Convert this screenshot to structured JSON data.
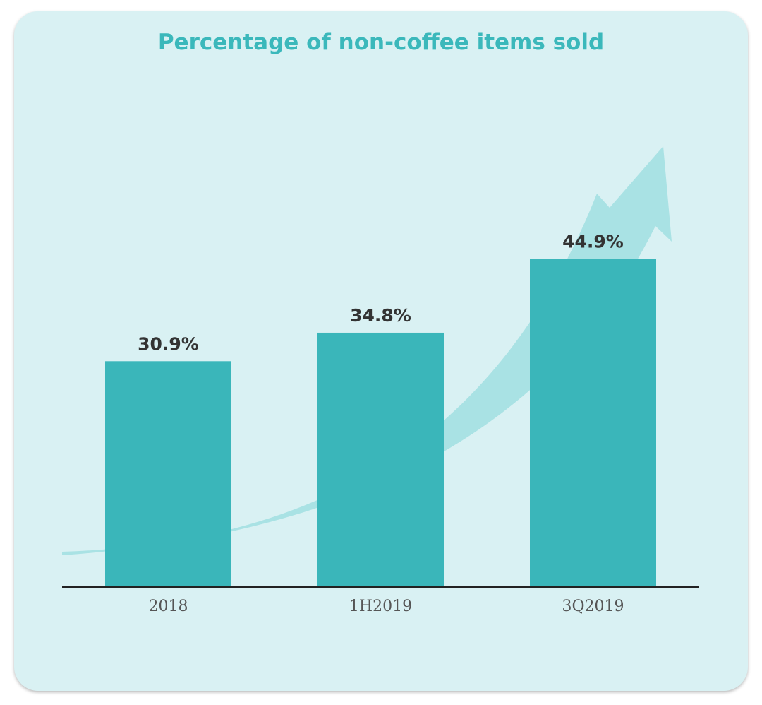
{
  "colors": {
    "card_background": "#d9f1f3",
    "title": "#3bb8bb",
    "bar": "#3ab6ba",
    "arrow": "#a9e2e4",
    "value_label": "#333333",
    "tick_label": "#555555",
    "axis": "#222222"
  },
  "chart_data": {
    "type": "bar",
    "title": "Percentage of non-coffee items sold",
    "xlabel": "",
    "ylabel": "",
    "categories": [
      "2018",
      "1H2019",
      "3Q2019"
    ],
    "values": [
      30.9,
      34.8,
      44.9
    ],
    "value_labels": [
      "30.9%",
      "34.8%",
      "44.9%"
    ],
    "unit": "%",
    "ylim": [
      0,
      52
    ],
    "grid": false,
    "legend": "none",
    "decoration": "upward-trend-arrow"
  }
}
